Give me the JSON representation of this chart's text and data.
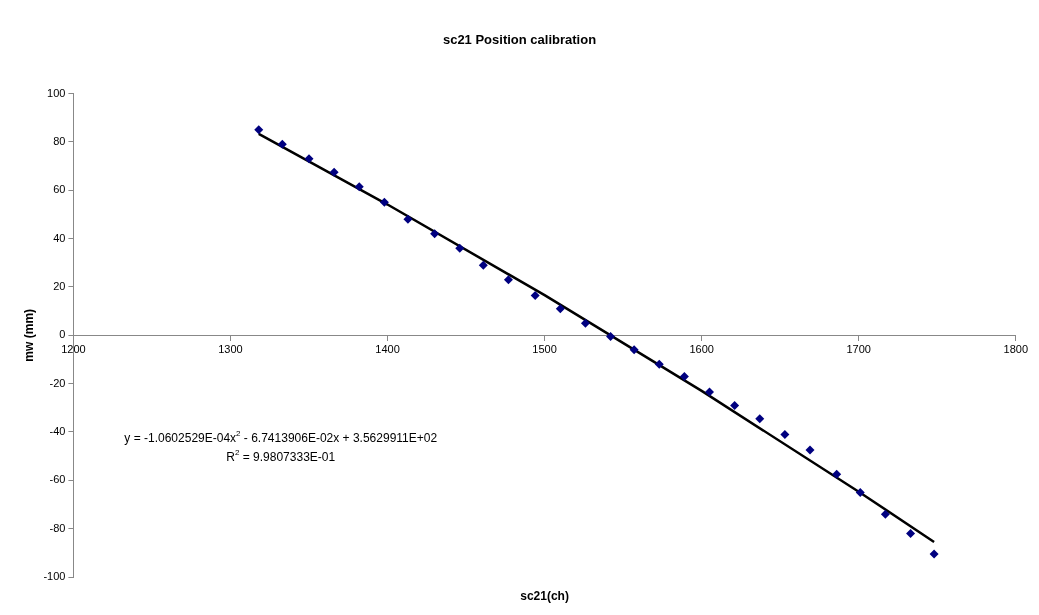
{
  "chart_data": {
    "type": "scatter",
    "title": "sc21 Position calibration",
    "xlabel": "sc21(ch)",
    "ylabel": "mw (mm)",
    "xlim": [
      1200,
      1800
    ],
    "xticks": [
      1200,
      1300,
      1400,
      1500,
      1600,
      1700,
      1800
    ],
    "ylim": [
      -100,
      100
    ],
    "yticks": [
      -100,
      -80,
      -60,
      -40,
      -20,
      0,
      20,
      40,
      60,
      80,
      100
    ],
    "grid": false,
    "legend": false,
    "marker": "diamond",
    "annotations": [
      "y = -1.0602529E-04x$^{2}$ - 6.7413906E-02x + 3.5629911E+02",
      "R$^{2}$ = 9.9807333E-01"
    ],
    "series": [
      {
        "color": "#000080",
        "x": [
          1318,
          1333,
          1350,
          1366,
          1382,
          1398,
          1413,
          1430,
          1446,
          1461,
          1477,
          1494,
          1510,
          1526,
          1542,
          1557,
          1573,
          1589,
          1605,
          1621,
          1637,
          1653,
          1669,
          1686,
          1701,
          1717,
          1733,
          1748
        ],
        "values": [
          85,
          79,
          73,
          67.5,
          61.5,
          55,
          48,
          42,
          36,
          29,
          23,
          16.5,
          11,
          5,
          -0.5,
          -6,
          -12,
          -17,
          -23.5,
          -29,
          -34.5,
          -41,
          -47.5,
          -57.5,
          -65,
          -74,
          -82,
          -90.5
        ]
      },
      {
        "type": "line",
        "color": "#000000",
        "line_style": "solid",
        "marker": "none",
        "x": [
          1318,
          1400,
          1500,
          1600,
          1700,
          1748
        ],
        "values": [
          83.3,
          54.1,
          16.6,
          -23,
          -64.7,
          -85.5
        ]
      }
    ]
  }
}
